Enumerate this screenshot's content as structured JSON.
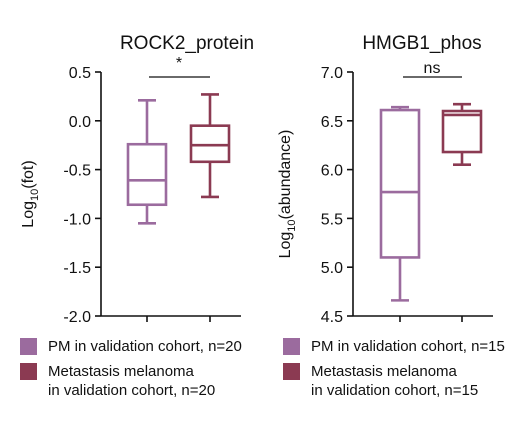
{
  "chart_data": [
    {
      "type": "boxplot",
      "title": "ROCK2_protein",
      "ylabel": "Log10(fot)",
      "ylabel_base": "Log",
      "ylabel_sub": "10",
      "ylabel_rest": "(fot)",
      "ylim": [
        -2.0,
        0.5
      ],
      "yticks": [
        "0.5",
        "0.0",
        "-0.5",
        "-1.0",
        "-1.5",
        "-2.0"
      ],
      "significance": "*",
      "series": [
        {
          "name": "PM in validation cohort, n=20",
          "color": "#9b6b9e",
          "min": -1.05,
          "q1": -0.86,
          "median": -0.61,
          "q3": -0.24,
          "max": 0.21
        },
        {
          "name": "Metastasis melanoma in validation cohort, n=20",
          "color": "#8b3a52",
          "min": -0.78,
          "q1": -0.42,
          "median": -0.25,
          "q3": -0.05,
          "max": 0.27
        }
      ],
      "legend": [
        {
          "label": "PM in validation cohort, n=20",
          "color": "#9b6b9e"
        },
        {
          "label": "Metastasis melanoma\nin validation cohort, n=20",
          "color": "#8b3a52"
        }
      ]
    },
    {
      "type": "boxplot",
      "title": "HMGB1_phos",
      "ylabel": "Log10(abundance)",
      "ylabel_base": "Log",
      "ylabel_sub": "10",
      "ylabel_rest": "(abundance)",
      "ylim": [
        4.5,
        7.0
      ],
      "yticks": [
        "7.0",
        "6.5",
        "6.0",
        "5.5",
        "5.0",
        "4.5"
      ],
      "significance": "ns",
      "series": [
        {
          "name": "PM in validation cohort, n=15",
          "color": "#9b6b9e",
          "min": 4.66,
          "q1": 5.1,
          "median": 5.77,
          "q3": 6.61,
          "max": 6.64
        },
        {
          "name": "Metastasis melanoma in validation cohort, n=15",
          "color": "#8b3a52",
          "min": 6.05,
          "q1": 6.18,
          "median": 6.56,
          "q3": 6.6,
          "max": 6.67
        }
      ],
      "legend": [
        {
          "label": "PM in validation cohort, n=15",
          "color": "#9b6b9e"
        },
        {
          "label": "Metastasis melanoma\nin validation cohort, n=15",
          "color": "#8b3a52"
        }
      ]
    }
  ]
}
